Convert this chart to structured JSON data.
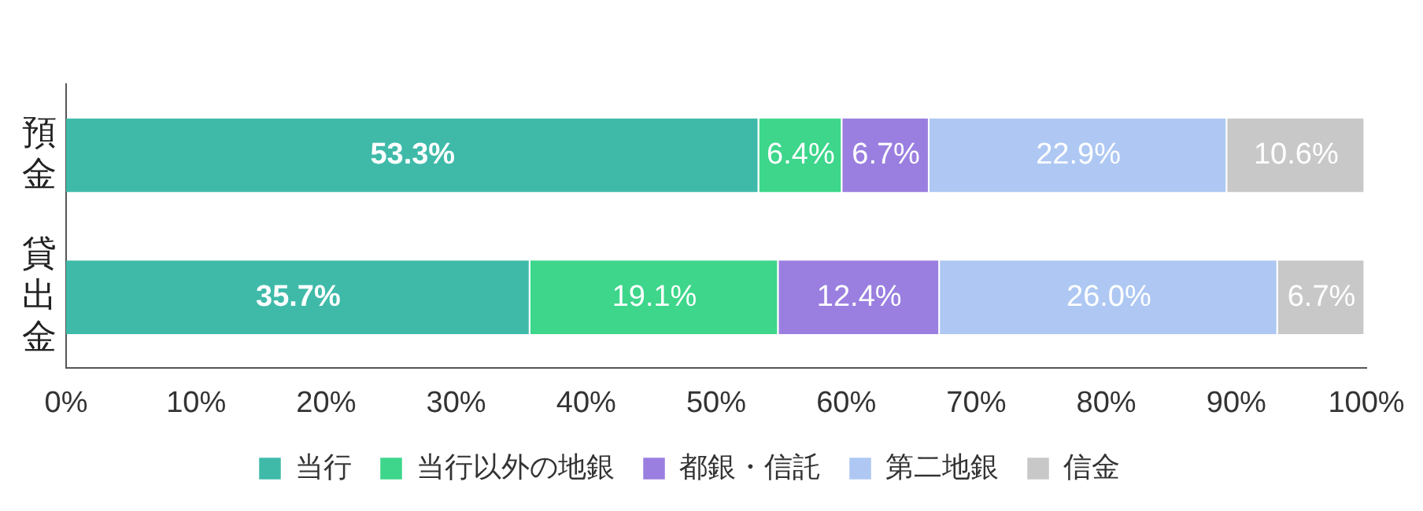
{
  "chart_data": {
    "type": "bar",
    "orientation": "horizontal",
    "stacked": true,
    "categories": [
      "預金",
      "貸出金"
    ],
    "series": [
      {
        "name": "当行",
        "color": "#3fbaa9",
        "values": [
          53.3,
          35.7
        ],
        "value_labels": [
          "53.3%",
          "35.7%"
        ]
      },
      {
        "name": "当行以外の地銀",
        "color": "#3dd68b",
        "values": [
          6.4,
          19.1
        ],
        "value_labels": [
          "6.4%",
          "19.1%"
        ]
      },
      {
        "name": "都銀・信託",
        "color": "#9a7fe0",
        "values": [
          6.7,
          12.4
        ],
        "value_labels": [
          "6.7%",
          "12.4%"
        ]
      },
      {
        "name": "第二地銀",
        "color": "#aec8f3",
        "values": [
          22.9,
          26.0
        ],
        "value_labels": [
          "22.9%",
          "26.0%"
        ]
      },
      {
        "name": "信金",
        "color": "#c8c8c8",
        "values": [
          10.6,
          6.7
        ],
        "value_labels": [
          "10.6%",
          "6.7%"
        ]
      }
    ],
    "xlim": [
      0,
      100
    ],
    "xticks": [
      {
        "value": 0,
        "label": "0%"
      },
      {
        "value": 10,
        "label": "10%"
      },
      {
        "value": 20,
        "label": "20%"
      },
      {
        "value": 30,
        "label": "30%"
      },
      {
        "value": 40,
        "label": "40%"
      },
      {
        "value": 50,
        "label": "50%"
      },
      {
        "value": 60,
        "label": "60%"
      },
      {
        "value": 70,
        "label": "70%"
      },
      {
        "value": 80,
        "label": "80%"
      },
      {
        "value": 90,
        "label": "90%"
      },
      {
        "value": 100,
        "label": "100%"
      }
    ],
    "grid": false,
    "legend": "bottom"
  }
}
